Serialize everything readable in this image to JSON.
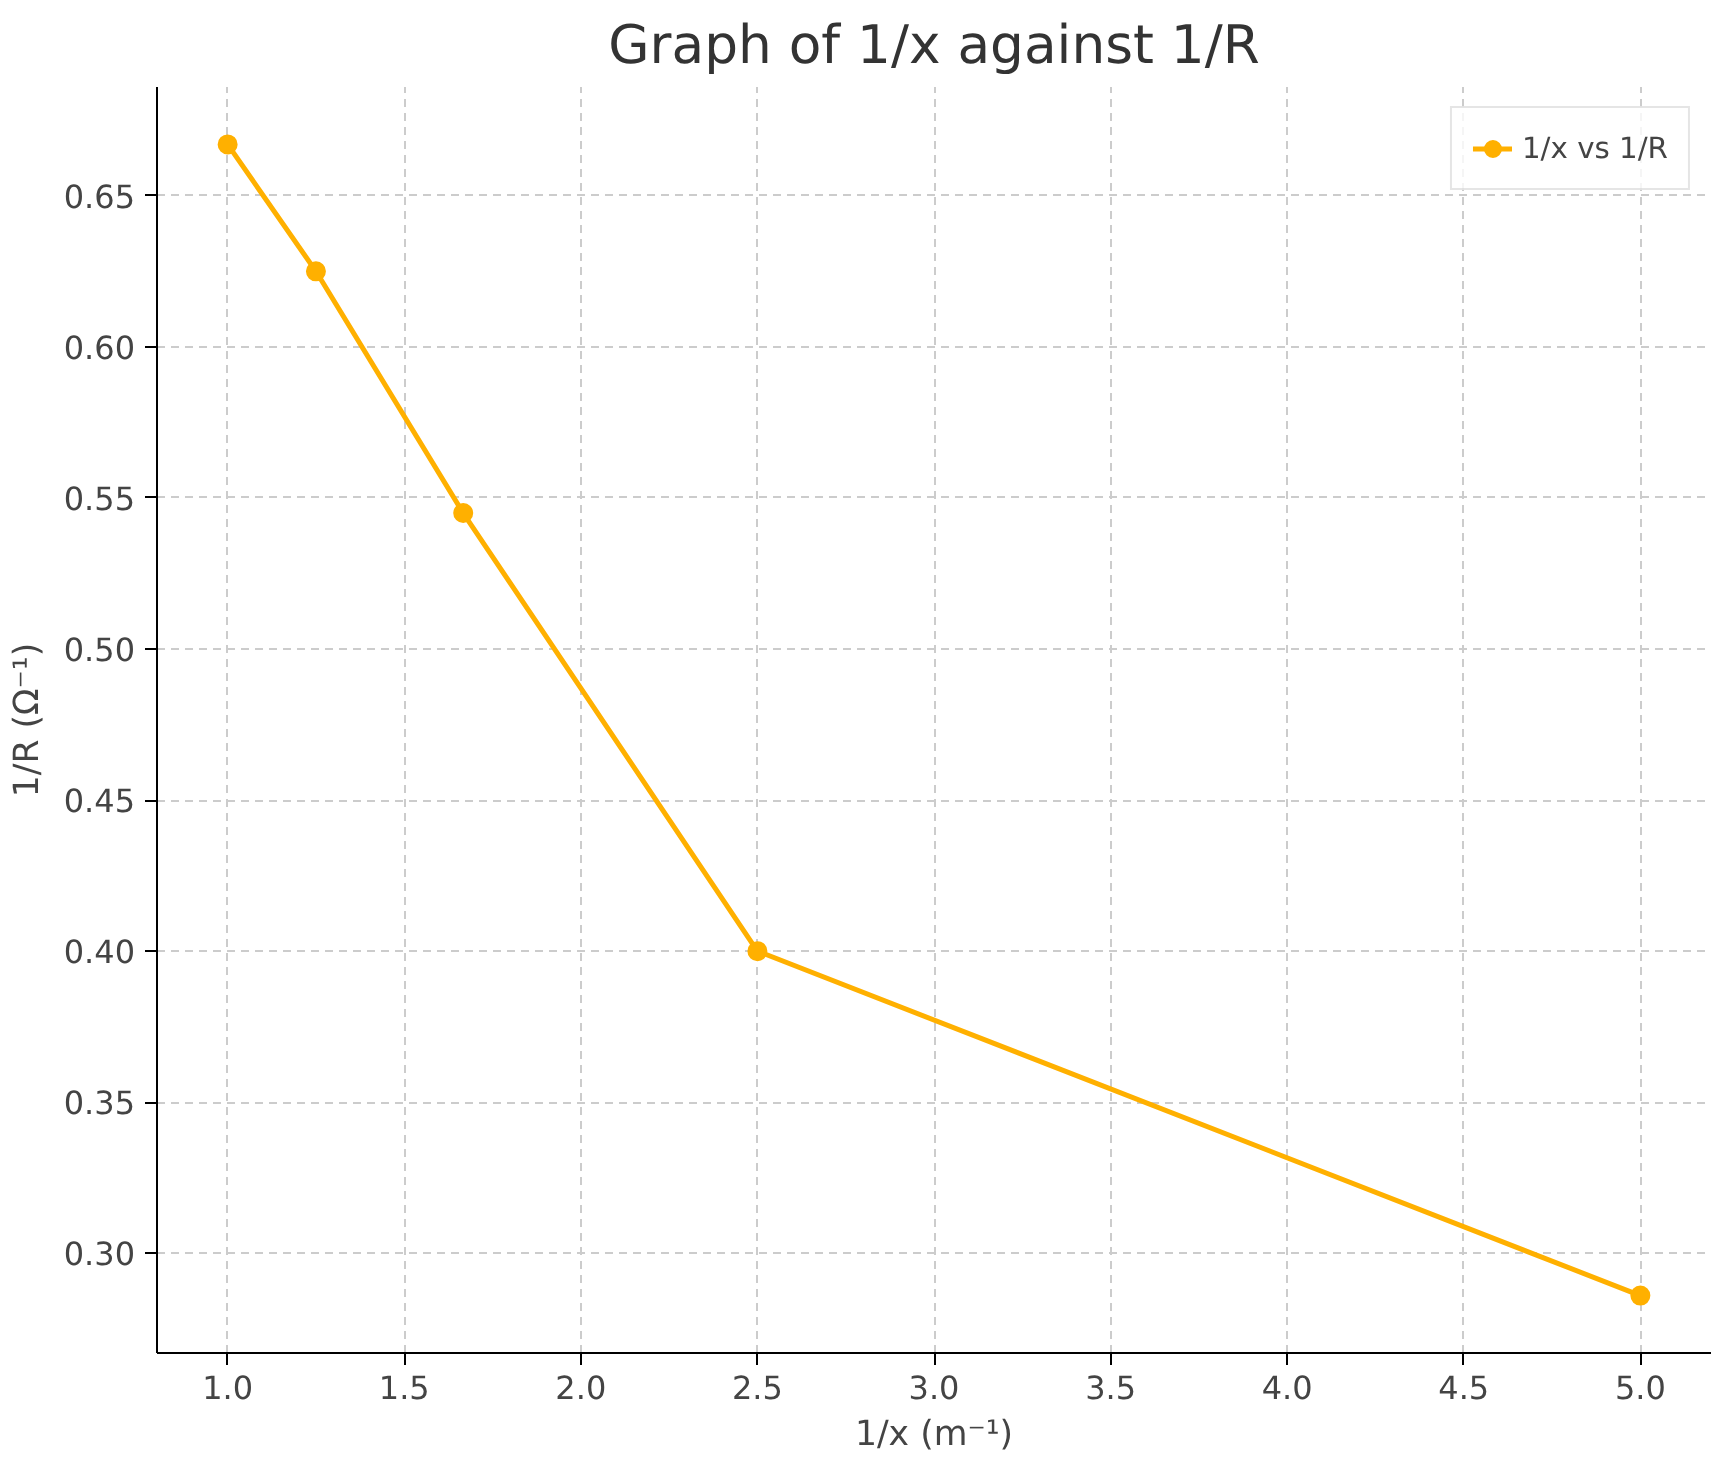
{
  "chart_data": {
    "type": "line",
    "title": "Graph of 1/x against 1/R",
    "xlabel": "1/x (m⁻¹)",
    "ylabel": "1/R (Ω⁻¹)",
    "x": [
      1.0,
      1.25,
      1.667,
      2.5,
      5.0
    ],
    "series": [
      {
        "name": "1/x vs 1/R",
        "color": "#ffb000",
        "values": [
          0.667,
          0.625,
          0.545,
          0.4,
          0.286
        ]
      }
    ],
    "xlim": [
      0.8,
      5.2
    ],
    "ylim": [
      0.267,
      0.686
    ],
    "xticks": [
      {
        "value": 1.0,
        "label": "1.0"
      },
      1.5,
      {
        "value": 2.0,
        "label": "2.0"
      },
      2.5,
      {
        "value": 3.0,
        "label": "3.0"
      },
      3.5,
      {
        "value": 4.0,
        "label": "4.0"
      },
      4.5,
      {
        "value": 5.0,
        "label": "5.0"
      }
    ],
    "yticks": [
      {
        "value": 0.3,
        "label": "0.30"
      },
      0.35,
      {
        "value": 0.4,
        "label": "0.40"
      },
      0.45,
      {
        "value": 0.5,
        "label": "0.50"
      },
      0.55,
      {
        "value": 0.6,
        "label": "0.60"
      },
      0.65
    ],
    "grid": true,
    "legend": "top right",
    "marker": "circle",
    "line_style": "solid"
  }
}
